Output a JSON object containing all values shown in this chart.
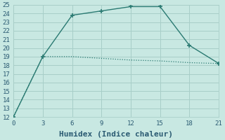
{
  "line1_x": [
    0,
    3,
    6,
    9,
    12,
    15,
    18,
    21
  ],
  "line1_y": [
    12,
    19,
    23.8,
    24.3,
    24.8,
    24.8,
    20.3,
    18.2
  ],
  "line2_x": [
    0,
    3,
    6,
    9,
    12,
    15,
    18,
    21
  ],
  "line2_y": [
    12,
    19,
    19.0,
    18.8,
    18.6,
    18.5,
    18.3,
    18.2
  ],
  "line_color": "#2a7a72",
  "bg_color": "#c8e8e2",
  "grid_color": "#a8cec8",
  "xlabel": "Humidex (Indice chaleur)",
  "xlim": [
    0,
    21
  ],
  "ylim": [
    12,
    25
  ],
  "xticks": [
    0,
    3,
    6,
    9,
    12,
    15,
    18,
    21
  ],
  "yticks": [
    12,
    13,
    14,
    15,
    16,
    17,
    18,
    19,
    20,
    21,
    22,
    23,
    24,
    25
  ],
  "font_color": "#2a5a72",
  "tick_fontsize": 6.5,
  "label_fontsize": 8
}
